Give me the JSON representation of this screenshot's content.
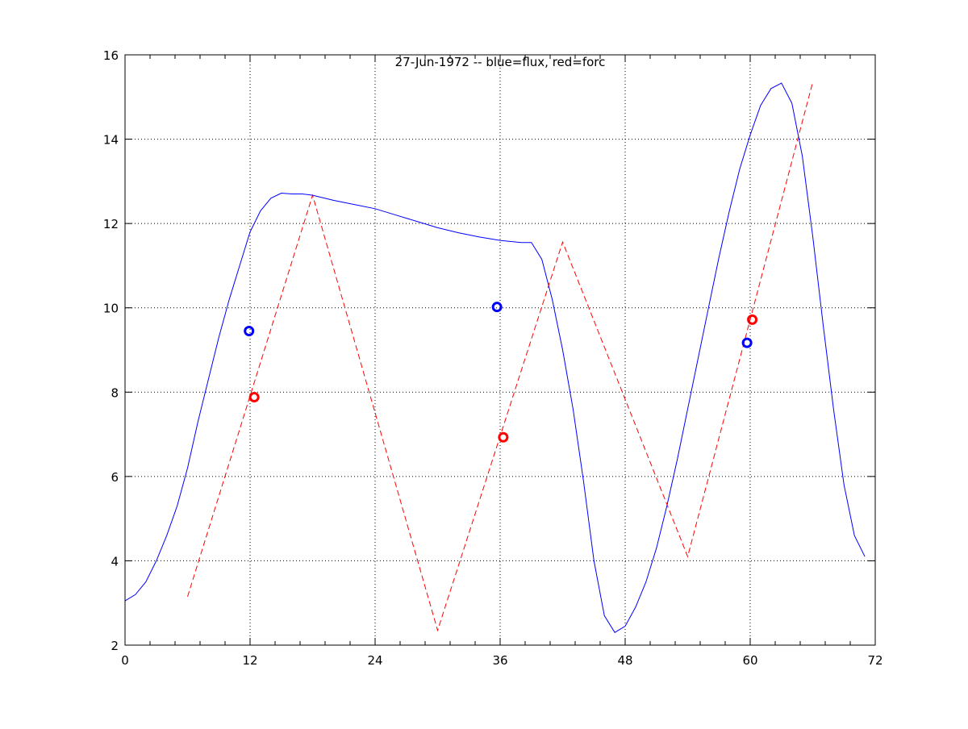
{
  "chart_data": {
    "type": "line",
    "title": "27-Jun-1972 -- blue=flux, red=forc",
    "xlabel": "",
    "ylabel": "",
    "xlim": [
      0,
      72
    ],
    "ylim": [
      2,
      16
    ],
    "xticks": [
      0,
      12,
      24,
      36,
      48,
      60,
      72
    ],
    "yticks": [
      2,
      4,
      6,
      8,
      10,
      12,
      14,
      16
    ],
    "x_minor_step": 2.4,
    "grid": true,
    "series": [
      {
        "color": "#0000ff",
        "style": "solid",
        "x": [
          0,
          1,
          2,
          3,
          4,
          5,
          6,
          7,
          8,
          9,
          10,
          11,
          12,
          13,
          14,
          15,
          16,
          17,
          18,
          20,
          22,
          24,
          26,
          28,
          30,
          32,
          34,
          36,
          38,
          39,
          40,
          41,
          42,
          43,
          44,
          45,
          46,
          47,
          48,
          49,
          50,
          51,
          52,
          53,
          54,
          55,
          56,
          57,
          58,
          59,
          60,
          61,
          62,
          63,
          64,
          65,
          66,
          67,
          68,
          69,
          70,
          71
        ],
        "y": [
          3.05,
          3.2,
          3.5,
          4.0,
          4.6,
          5.3,
          6.2,
          7.3,
          8.3,
          9.3,
          10.2,
          11.0,
          11.8,
          12.3,
          12.6,
          12.72,
          12.7,
          12.7,
          12.67,
          12.55,
          12.45,
          12.35,
          12.2,
          12.05,
          11.9,
          11.78,
          11.68,
          11.6,
          11.55,
          11.55,
          11.15,
          10.2,
          9.0,
          7.6,
          5.9,
          4.0,
          2.7,
          2.3,
          2.45,
          2.9,
          3.5,
          4.3,
          5.3,
          6.4,
          7.6,
          8.8,
          10.0,
          11.2,
          12.3,
          13.3,
          14.1,
          14.8,
          15.2,
          15.33,
          14.85,
          13.6,
          11.7,
          9.6,
          7.6,
          5.8,
          4.6,
          4.1
        ]
      },
      {
        "color": "#ff0000",
        "style": "dashed",
        "x": [
          6,
          18,
          30,
          42,
          54,
          66
        ],
        "y": [
          3.15,
          12.67,
          2.35,
          11.56,
          4.1,
          15.35
        ]
      }
    ],
    "markers": [
      {
        "color": "#0000ff",
        "x": 11.9,
        "y": 9.45
      },
      {
        "color": "#0000ff",
        "x": 35.7,
        "y": 10.02
      },
      {
        "color": "#0000ff",
        "x": 59.7,
        "y": 9.17
      },
      {
        "color": "#ff0000",
        "x": 12.4,
        "y": 7.88
      },
      {
        "color": "#ff0000",
        "x": 36.3,
        "y": 6.93
      },
      {
        "color": "#ff0000",
        "x": 60.2,
        "y": 9.72
      }
    ]
  }
}
